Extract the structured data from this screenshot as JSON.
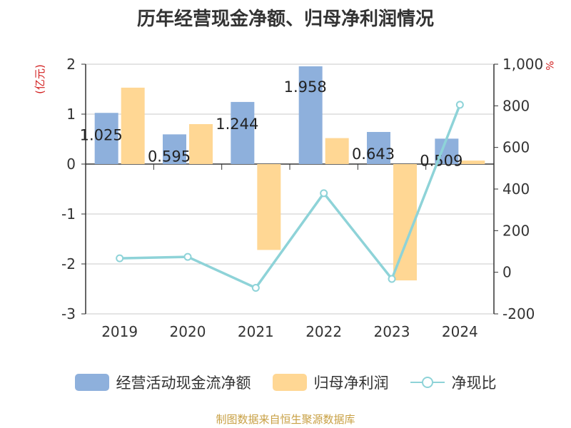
{
  "chart_data": {
    "type": "bar",
    "title": "历年经营现金净额、归母净利润情况",
    "categories": [
      "2019",
      "2020",
      "2021",
      "2022",
      "2023",
      "2024"
    ],
    "left_axis": {
      "label": "(亿元)",
      "range": [
        -3,
        2
      ],
      "ticks": [
        2,
        1,
        0,
        -1,
        -2,
        -3
      ]
    },
    "right_axis": {
      "label": "%",
      "range": [
        -200,
        1000
      ],
      "ticks": [
        "1,000",
        "800",
        "600",
        "400",
        "200",
        "0",
        "-200"
      ]
    },
    "series": [
      {
        "name": "经营活动现金流净额",
        "type": "bar",
        "axis": "left",
        "values": [
          1.025,
          0.595,
          1.244,
          1.958,
          0.643,
          0.509
        ],
        "labels": [
          "1.025",
          "0.595",
          "1.244",
          "1.958",
          "0.643",
          "0.509"
        ]
      },
      {
        "name": "归母净利润",
        "type": "bar",
        "axis": "left",
        "values": [
          1.53,
          0.8,
          -1.72,
          0.52,
          -2.33,
          0.07
        ]
      },
      {
        "name": "净现比",
        "type": "line",
        "axis": "right",
        "values": [
          67,
          74,
          -75,
          380,
          -32,
          805
        ]
      }
    ],
    "grid": true,
    "legend": "bottom",
    "colors": {
      "cash": "#8eb0dc",
      "profit": "#ffd794",
      "ratio": "#8ed3d8",
      "unit": "#d21f1f",
      "source": "#c8a044"
    }
  },
  "legend_items": {
    "cash": "经营活动现金流净额",
    "profit": "归母净利润",
    "ratio": "净现比"
  },
  "source_text": "制图数据来自恒生聚源数据库"
}
